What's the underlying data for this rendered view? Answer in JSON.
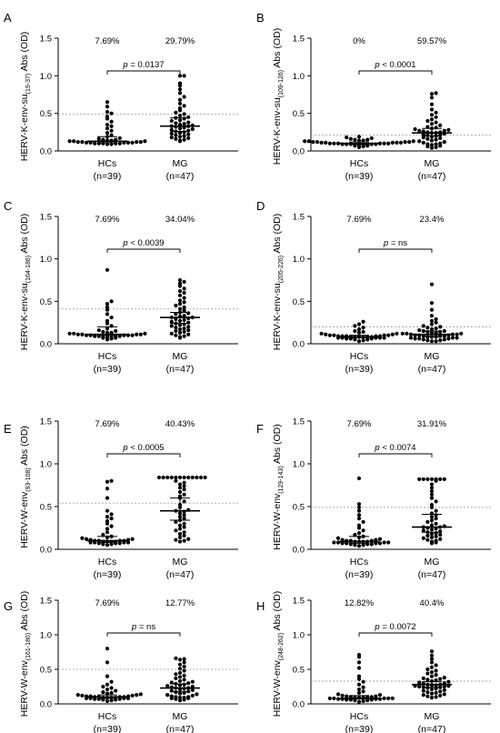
{
  "figure": {
    "panels": [
      {
        "letter": "A",
        "ylabel": "HERV-K-env-su",
        "ylabel_sub": "(19-37)",
        "ylabel_suffix": " Abs (OD)",
        "pct_hc": "7.69%",
        "pct_mg": "29.79%",
        "pval_prefix": "p",
        "pval_rest": " = 0.0137"
      },
      {
        "letter": "B",
        "ylabel": "HERV-K-env-su",
        "ylabel_sub": "(109-126)",
        "ylabel_suffix": " Abs (OD)",
        "pct_hc": "0%",
        "pct_mg": "59.57%",
        "pval_prefix": "p",
        "pval_rest": " < 0.0001"
      },
      {
        "letter": "C",
        "ylabel": "HERV-K-env-su",
        "ylabel_sub": "(164-186)",
        "ylabel_suffix": " Abs (OD)",
        "pct_hc": "7.69%",
        "pct_mg": "34.04%",
        "pval_prefix": "p",
        "pval_rest": " < 0.0039"
      },
      {
        "letter": "D",
        "ylabel": "HERV-K-env-su",
        "ylabel_sub": "(205-226)",
        "ylabel_suffix": " Abs (OD)",
        "pct_hc": "7.69%",
        "pct_mg": "23.4%",
        "pval_prefix": "p",
        "pval_rest": " = ns"
      },
      {
        "letter": "E",
        "ylabel": "HERV-W-env",
        "ylabel_sub": "(93-108)",
        "ylabel_suffix": " Abs (OD)",
        "pct_hc": "7.69%",
        "pct_mg": "40.43%",
        "pval_prefix": "p",
        "pval_rest": " < 0.0005"
      },
      {
        "letter": "F",
        "ylabel": "HERV-W-env",
        "ylabel_sub": "(129-143)",
        "ylabel_suffix": " Abs (OD)",
        "pct_hc": "7.69%",
        "pct_mg": "31.91%",
        "pval_prefix": "p",
        "pval_rest": " < 0.0074"
      },
      {
        "letter": "G",
        "ylabel": "HERV-W-env",
        "ylabel_sub": "(161-180)",
        "ylabel_suffix": " Abs (OD)",
        "pct_hc": "7.69%",
        "pct_mg": "12.77%",
        "pval_prefix": "p",
        "pval_rest": " = ns"
      },
      {
        "letter": "H",
        "ylabel": "HERV-W-env",
        "ylabel_sub": "(248-262)",
        "ylabel_suffix": " Abs (OD)",
        "pct_hc": "12.82%",
        "pct_mg": "40.4%",
        "pval_prefix": "p",
        "pval_rest": " = 0.0072"
      }
    ]
  },
  "chart_data": [
    {
      "panel": "A",
      "type": "scatter",
      "ylim": [
        0,
        1.5
      ],
      "yticks": [
        "0.0",
        "0.5",
        "1.0",
        "1.5"
      ],
      "categories": [
        "HCs",
        "MG"
      ],
      "n_labels": [
        "(n=39)",
        "(n=47)"
      ],
      "cutoff": 0.49,
      "medians": [
        0.13,
        0.33
      ],
      "ci": [
        [
          0.11,
          0.19
        ],
        [
          0.26,
          0.44
        ]
      ],
      "series": [
        {
          "values": [
            0.65,
            0.59,
            0.52,
            0.5,
            0.46,
            0.43,
            0.39,
            0.35,
            0.33,
            0.3,
            0.27,
            0.24,
            0.21,
            0.19,
            0.17,
            0.16,
            0.15,
            0.15,
            0.14,
            0.14,
            0.13,
            0.13,
            0.13,
            0.12,
            0.12,
            0.12,
            0.12,
            0.11,
            0.11,
            0.11,
            0.11,
            0.11,
            0.1,
            0.1,
            0.1,
            0.1,
            0.1,
            0.09,
            0.09
          ]
        },
        {
          "values": [
            1.0,
            1.0,
            0.9,
            0.87,
            0.82,
            0.77,
            0.72,
            0.68,
            0.63,
            0.6,
            0.57,
            0.54,
            0.51,
            0.49,
            0.47,
            0.45,
            0.44,
            0.43,
            0.41,
            0.4,
            0.38,
            0.37,
            0.36,
            0.35,
            0.34,
            0.33,
            0.33,
            0.32,
            0.31,
            0.3,
            0.29,
            0.28,
            0.27,
            0.26,
            0.25,
            0.24,
            0.23,
            0.22,
            0.21,
            0.2,
            0.19,
            0.18,
            0.17,
            0.16,
            0.15,
            0.14,
            0.13
          ]
        }
      ]
    },
    {
      "panel": "B",
      "type": "scatter",
      "ylim": [
        0,
        1.5
      ],
      "yticks": [
        "0.0",
        "0.5",
        "1.0",
        "1.5"
      ],
      "categories": [
        "HCs",
        "MG"
      ],
      "n_labels": [
        "(n=39)",
        "(n=47)"
      ],
      "cutoff": 0.21,
      "medians": [
        0.1,
        0.24
      ],
      "ci": [
        [
          0.09,
          0.12
        ],
        [
          0.2,
          0.3
        ]
      ],
      "series": [
        {
          "values": [
            0.19,
            0.18,
            0.17,
            0.16,
            0.15,
            0.15,
            0.14,
            0.14,
            0.13,
            0.13,
            0.13,
            0.12,
            0.12,
            0.12,
            0.12,
            0.11,
            0.11,
            0.11,
            0.11,
            0.11,
            0.1,
            0.1,
            0.1,
            0.1,
            0.1,
            0.1,
            0.09,
            0.09,
            0.09,
            0.09,
            0.09,
            0.08,
            0.08,
            0.08,
            0.08,
            0.07,
            0.07,
            0.06,
            0.05
          ]
        },
        {
          "values": [
            0.77,
            0.76,
            0.71,
            0.62,
            0.55,
            0.51,
            0.48,
            0.45,
            0.42,
            0.4,
            0.38,
            0.36,
            0.34,
            0.32,
            0.31,
            0.3,
            0.29,
            0.28,
            0.27,
            0.27,
            0.26,
            0.25,
            0.25,
            0.24,
            0.24,
            0.23,
            0.22,
            0.22,
            0.21,
            0.2,
            0.19,
            0.18,
            0.17,
            0.16,
            0.15,
            0.14,
            0.13,
            0.12,
            0.11,
            0.1,
            0.09,
            0.09,
            0.08,
            0.07,
            0.06,
            0.05,
            0.04
          ]
        }
      ]
    },
    {
      "panel": "C",
      "type": "scatter",
      "ylim": [
        0,
        1.5
      ],
      "yticks": [
        "0.0",
        "0.5",
        "1.0",
        "1.5"
      ],
      "categories": [
        "HCs",
        "MG"
      ],
      "n_labels": [
        "(n=39)",
        "(n=47)"
      ],
      "cutoff": 0.41,
      "medians": [
        0.11,
        0.31
      ],
      "ci": [
        [
          0.1,
          0.2
        ],
        [
          0.24,
          0.37
        ]
      ],
      "series": [
        {
          "values": [
            0.87,
            0.5,
            0.47,
            0.43,
            0.4,
            0.35,
            0.31,
            0.27,
            0.24,
            0.21,
            0.18,
            0.16,
            0.15,
            0.14,
            0.13,
            0.13,
            0.12,
            0.12,
            0.12,
            0.11,
            0.11,
            0.11,
            0.11,
            0.1,
            0.1,
            0.1,
            0.1,
            0.1,
            0.09,
            0.09,
            0.09,
            0.09,
            0.08,
            0.08,
            0.08,
            0.07,
            0.07,
            0.06,
            0.05
          ]
        },
        {
          "values": [
            0.75,
            0.73,
            0.71,
            0.68,
            0.65,
            0.62,
            0.6,
            0.57,
            0.54,
            0.51,
            0.49,
            0.47,
            0.45,
            0.43,
            0.41,
            0.39,
            0.37,
            0.36,
            0.35,
            0.33,
            0.32,
            0.31,
            0.31,
            0.3,
            0.29,
            0.28,
            0.27,
            0.26,
            0.25,
            0.24,
            0.23,
            0.22,
            0.21,
            0.2,
            0.19,
            0.18,
            0.17,
            0.16,
            0.15,
            0.14,
            0.13,
            0.12,
            0.11,
            0.1,
            0.09,
            0.08,
            0.07
          ]
        }
      ]
    },
    {
      "panel": "D",
      "type": "scatter",
      "ylim": [
        0,
        1.5
      ],
      "yticks": [
        "0.0",
        "0.5",
        "1.0",
        "1.5"
      ],
      "categories": [
        "HCs",
        "MG"
      ],
      "n_labels": [
        "(n=39)",
        "(n=47)"
      ],
      "cutoff": 0.2,
      "medians": [
        0.08,
        0.11
      ],
      "ci": [
        [
          0.07,
          0.1
        ],
        [
          0.09,
          0.15
        ]
      ],
      "series": [
        {
          "values": [
            0.26,
            0.23,
            0.21,
            0.19,
            0.17,
            0.15,
            0.14,
            0.13,
            0.12,
            0.12,
            0.11,
            0.11,
            0.1,
            0.1,
            0.1,
            0.1,
            0.09,
            0.09,
            0.09,
            0.09,
            0.09,
            0.08,
            0.08,
            0.08,
            0.08,
            0.08,
            0.08,
            0.07,
            0.07,
            0.07,
            0.07,
            0.07,
            0.06,
            0.06,
            0.06,
            0.05,
            0.05,
            0.04,
            0.03
          ]
        },
        {
          "values": [
            0.7,
            0.48,
            0.4,
            0.33,
            0.29,
            0.27,
            0.25,
            0.23,
            0.21,
            0.2,
            0.19,
            0.18,
            0.17,
            0.16,
            0.15,
            0.15,
            0.14,
            0.14,
            0.13,
            0.13,
            0.12,
            0.12,
            0.12,
            0.11,
            0.11,
            0.11,
            0.1,
            0.1,
            0.1,
            0.09,
            0.09,
            0.09,
            0.08,
            0.08,
            0.08,
            0.07,
            0.07,
            0.07,
            0.06,
            0.06,
            0.06,
            0.05,
            0.05,
            0.04,
            0.04,
            0.03,
            0.03
          ]
        }
      ]
    },
    {
      "panel": "E",
      "type": "scatter",
      "ylim": [
        0,
        1.5
      ],
      "yticks": [
        "0.0",
        "0.5",
        "1.0",
        "1.5"
      ],
      "categories": [
        "HCs",
        "MG"
      ],
      "n_labels": [
        "(n=39)",
        "(n=47)"
      ],
      "cutoff": 0.54,
      "medians": [
        0.1,
        0.45
      ],
      "ci": [
        [
          0.08,
          0.15
        ],
        [
          0.34,
          0.6
        ]
      ],
      "series": [
        {
          "values": [
            0.8,
            0.79,
            0.71,
            0.6,
            0.45,
            0.41,
            0.38,
            0.36,
            0.33,
            0.3,
            0.27,
            0.24,
            0.2,
            0.17,
            0.15,
            0.14,
            0.13,
            0.12,
            0.12,
            0.11,
            0.11,
            0.1,
            0.1,
            0.1,
            0.1,
            0.09,
            0.09,
            0.09,
            0.09,
            0.08,
            0.08,
            0.08,
            0.08,
            0.07,
            0.07,
            0.07,
            0.06,
            0.06,
            0.05
          ]
        },
        {
          "values": [
            0.84,
            0.84,
            0.84,
            0.84,
            0.84,
            0.84,
            0.84,
            0.84,
            0.84,
            0.84,
            0.84,
            0.84,
            0.8,
            0.78,
            0.76,
            0.74,
            0.72,
            0.7,
            0.67,
            0.64,
            0.62,
            0.6,
            0.56,
            0.52,
            0.49,
            0.46,
            0.45,
            0.44,
            0.42,
            0.4,
            0.38,
            0.36,
            0.34,
            0.32,
            0.3,
            0.28,
            0.26,
            0.24,
            0.22,
            0.2,
            0.18,
            0.16,
            0.14,
            0.12,
            0.11,
            0.1,
            0.09
          ]
        }
      ]
    },
    {
      "panel": "F",
      "type": "scatter",
      "ylim": [
        0,
        1.5
      ],
      "yticks": [
        "0.0",
        "0.5",
        "1.0",
        "1.5"
      ],
      "categories": [
        "HCs",
        "MG"
      ],
      "n_labels": [
        "(n=39)",
        "(n=47)"
      ],
      "cutoff": 0.49,
      "medians": [
        0.09,
        0.26
      ],
      "ci": [
        [
          0.07,
          0.15
        ],
        [
          0.2,
          0.41
        ]
      ],
      "series": [
        {
          "values": [
            0.83,
            0.53,
            0.49,
            0.45,
            0.4,
            0.36,
            0.32,
            0.28,
            0.25,
            0.22,
            0.19,
            0.17,
            0.15,
            0.14,
            0.13,
            0.12,
            0.11,
            0.11,
            0.1,
            0.1,
            0.1,
            0.09,
            0.09,
            0.09,
            0.09,
            0.08,
            0.08,
            0.08,
            0.08,
            0.07,
            0.07,
            0.07,
            0.07,
            0.06,
            0.06,
            0.06,
            0.05,
            0.05,
            0.04
          ]
        },
        {
          "values": [
            0.82,
            0.82,
            0.82,
            0.82,
            0.82,
            0.82,
            0.82,
            0.8,
            0.76,
            0.72,
            0.68,
            0.64,
            0.6,
            0.56,
            0.52,
            0.49,
            0.45,
            0.42,
            0.4,
            0.38,
            0.36,
            0.34,
            0.32,
            0.3,
            0.28,
            0.27,
            0.26,
            0.26,
            0.25,
            0.24,
            0.23,
            0.22,
            0.21,
            0.2,
            0.19,
            0.18,
            0.17,
            0.16,
            0.15,
            0.14,
            0.13,
            0.12,
            0.11,
            0.1,
            0.09,
            0.08,
            0.07
          ]
        }
      ]
    },
    {
      "panel": "G",
      "type": "scatter",
      "ylim": [
        0,
        1.5
      ],
      "yticks": [
        "0.0",
        "0.5",
        "1.0",
        "1.5"
      ],
      "categories": [
        "HCs",
        "MG"
      ],
      "n_labels": [
        "(n=39)",
        "(n=47)"
      ],
      "cutoff": 0.5,
      "medians": [
        0.1,
        0.23
      ],
      "ci": [
        [
          0.08,
          0.13
        ],
        [
          0.18,
          0.29
        ]
      ],
      "series": [
        {
          "values": [
            0.8,
            0.6,
            0.4,
            0.32,
            0.28,
            0.25,
            0.23,
            0.21,
            0.19,
            0.17,
            0.16,
            0.15,
            0.14,
            0.13,
            0.13,
            0.12,
            0.12,
            0.11,
            0.11,
            0.11,
            0.1,
            0.1,
            0.1,
            0.1,
            0.09,
            0.09,
            0.09,
            0.09,
            0.08,
            0.08,
            0.08,
            0.08,
            0.07,
            0.07,
            0.07,
            0.06,
            0.06,
            0.05,
            0.04
          ]
        },
        {
          "values": [
            0.66,
            0.65,
            0.64,
            0.6,
            0.57,
            0.54,
            0.51,
            0.48,
            0.45,
            0.43,
            0.41,
            0.39,
            0.37,
            0.35,
            0.33,
            0.32,
            0.31,
            0.3,
            0.29,
            0.28,
            0.27,
            0.26,
            0.25,
            0.24,
            0.23,
            0.23,
            0.22,
            0.21,
            0.2,
            0.19,
            0.18,
            0.17,
            0.16,
            0.15,
            0.14,
            0.13,
            0.12,
            0.11,
            0.1,
            0.1,
            0.09,
            0.09,
            0.08,
            0.08,
            0.07,
            0.06,
            0.05
          ]
        }
      ]
    },
    {
      "panel": "H",
      "type": "scatter",
      "ylim": [
        0,
        1.5
      ],
      "yticks": [
        "0.0",
        "0.5",
        "1.0",
        "1.5"
      ],
      "categories": [
        "HCs",
        "MG"
      ],
      "n_labels": [
        "(n=39)",
        "(n=47)"
      ],
      "cutoff": 0.33,
      "medians": [
        0.08,
        0.28
      ],
      "ci": [
        [
          0.07,
          0.12
        ],
        [
          0.24,
          0.32
        ]
      ],
      "series": [
        {
          "values": [
            0.71,
            0.68,
            0.6,
            0.52,
            0.4,
            0.36,
            0.32,
            0.28,
            0.24,
            0.21,
            0.18,
            0.16,
            0.14,
            0.13,
            0.12,
            0.11,
            0.11,
            0.1,
            0.1,
            0.1,
            0.09,
            0.09,
            0.09,
            0.08,
            0.08,
            0.08,
            0.08,
            0.08,
            0.07,
            0.07,
            0.07,
            0.07,
            0.06,
            0.06,
            0.06,
            0.05,
            0.05,
            0.04,
            0.03
          ]
        },
        {
          "values": [
            0.76,
            0.7,
            0.65,
            0.6,
            0.56,
            0.53,
            0.5,
            0.48,
            0.46,
            0.44,
            0.42,
            0.4,
            0.38,
            0.37,
            0.36,
            0.35,
            0.34,
            0.33,
            0.32,
            0.31,
            0.3,
            0.29,
            0.28,
            0.28,
            0.27,
            0.27,
            0.26,
            0.26,
            0.25,
            0.25,
            0.24,
            0.24,
            0.23,
            0.22,
            0.21,
            0.2,
            0.19,
            0.18,
            0.17,
            0.16,
            0.15,
            0.14,
            0.13,
            0.12,
            0.11,
            0.1,
            0.09
          ]
        }
      ]
    }
  ]
}
